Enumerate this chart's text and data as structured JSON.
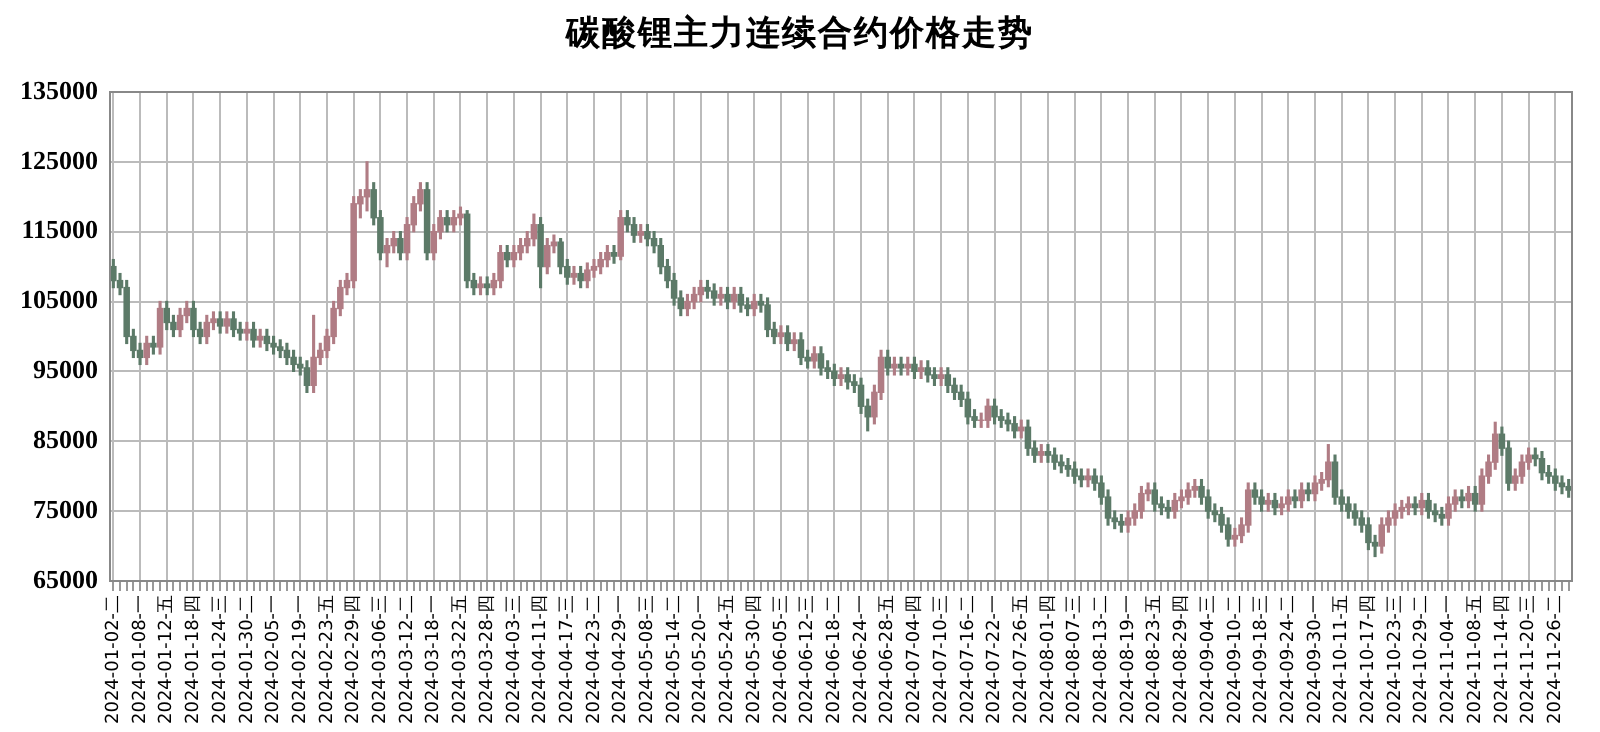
{
  "chart_data": {
    "type": "candlestick",
    "title": "碳酸锂主力连续合约价格走势",
    "categories": [
      "2024-01-02-二",
      null,
      null,
      null,
      "2024-01-08-一",
      null,
      null,
      null,
      "2024-01-12-五",
      null,
      null,
      null,
      "2024-01-18-四",
      null,
      null,
      null,
      "2024-01-24-三",
      null,
      null,
      null,
      "2024-01-30-二",
      null,
      null,
      null,
      "2024-02-05-一",
      null,
      null,
      null,
      "2024-02-19-一",
      null,
      null,
      null,
      "2024-02-23-五",
      null,
      null,
      null,
      "2024-02-29-四",
      null,
      null,
      null,
      "2024-03-06-三",
      null,
      null,
      null,
      "2024-03-12-二",
      null,
      null,
      null,
      "2024-03-18-一",
      null,
      null,
      null,
      "2024-03-22-五",
      null,
      null,
      null,
      "2024-03-28-四",
      null,
      null,
      null,
      "2024-04-03-三",
      null,
      null,
      null,
      "2024-04-11-四",
      null,
      null,
      null,
      "2024-04-17-三",
      null,
      null,
      null,
      "2024-04-23-二",
      null,
      null,
      null,
      "2024-04-29-一",
      null,
      null,
      null,
      "2024-05-08-三",
      null,
      null,
      null,
      "2024-05-14-二",
      null,
      null,
      null,
      "2024-05-20-一",
      null,
      null,
      null,
      "2024-05-24-五",
      null,
      null,
      null,
      "2024-05-30-四",
      null,
      null,
      null,
      "2024-06-05-三",
      null,
      null,
      null,
      "2024-06-12-三",
      null,
      null,
      null,
      "2024-06-18-二",
      null,
      null,
      null,
      "2024-06-24-一",
      null,
      null,
      null,
      "2024-06-28-五",
      null,
      null,
      null,
      "2024-07-04-四",
      null,
      null,
      null,
      "2024-07-10-三",
      null,
      null,
      null,
      "2024-07-16-二",
      null,
      null,
      null,
      "2024-07-22-一",
      null,
      null,
      null,
      "2024-07-26-五",
      null,
      null,
      null,
      "2024-08-01-四",
      null,
      null,
      null,
      "2024-08-07-三",
      null,
      null,
      null,
      "2024-08-13-二",
      null,
      null,
      null,
      "2024-08-19-一",
      null,
      null,
      null,
      "2024-08-23-五",
      null,
      null,
      null,
      "2024-08-29-四",
      null,
      null,
      null,
      "2024-09-04-三",
      null,
      null,
      null,
      "2024-09-10-二",
      null,
      null,
      null,
      "2024-09-18-三",
      null,
      null,
      null,
      "2024-09-24-二",
      null,
      null,
      null,
      "2024-09-30-一",
      null,
      null,
      null,
      "2024-10-11-五",
      null,
      null,
      null,
      "2024-10-17-四",
      null,
      null,
      null,
      "2024-10-23-三",
      null,
      null,
      null,
      "2024-10-29-二",
      null,
      null,
      null,
      "2024-11-04-一",
      null,
      null,
      null,
      "2024-11-08-五",
      null,
      null,
      null,
      "2024-11-14-四",
      null,
      null,
      null,
      "2024-11-20-三",
      null,
      null,
      null,
      "2024-11-26-二",
      null,
      null
    ],
    "ohlc": [
      [
        110000,
        111000,
        107000,
        108000
      ],
      [
        108000,
        109000,
        106000,
        107000
      ],
      [
        107000,
        108000,
        99000,
        100000
      ],
      [
        100000,
        101000,
        97000,
        98000
      ],
      [
        98000,
        99000,
        96000,
        97000
      ],
      [
        97000,
        100000,
        96000,
        99000
      ],
      [
        99000,
        100000,
        97500,
        98500
      ],
      [
        98500,
        105000,
        97500,
        104000
      ],
      [
        104000,
        105000,
        101000,
        102000
      ],
      [
        102000,
        103000,
        100000,
        101000
      ],
      [
        101000,
        104000,
        100000,
        103000
      ],
      [
        103000,
        105000,
        102000,
        104000
      ],
      [
        104000,
        105000,
        100000,
        101000
      ],
      [
        101000,
        102000,
        99000,
        100000
      ],
      [
        100000,
        103000,
        99000,
        102000
      ],
      [
        102000,
        103500,
        101000,
        102500
      ],
      [
        102500,
        103500,
        100500,
        101500
      ],
      [
        101500,
        103500,
        100500,
        102500
      ],
      [
        102500,
        103500,
        100000,
        101000
      ],
      [
        101000,
        102000,
        99500,
        100500
      ],
      [
        100500,
        102000,
        99500,
        101000
      ],
      [
        101000,
        102000,
        98500,
        99500
      ],
      [
        99500,
        101000,
        98500,
        100000
      ],
      [
        100000,
        101000,
        98000,
        99000
      ],
      [
        99000,
        100000,
        97500,
        98500
      ],
      [
        98500,
        99500,
        97000,
        98000
      ],
      [
        98000,
        99000,
        96000,
        97000
      ],
      [
        97000,
        98000,
        95000,
        96000
      ],
      [
        96000,
        97000,
        94500,
        95500
      ],
      [
        95500,
        96500,
        92000,
        93000
      ],
      [
        93000,
        103000,
        92000,
        97000
      ],
      [
        97000,
        99000,
        96000,
        98000
      ],
      [
        98000,
        101000,
        97000,
        100000
      ],
      [
        100000,
        105000,
        99000,
        104000
      ],
      [
        104000,
        108000,
        103000,
        107000
      ],
      [
        107000,
        109000,
        106000,
        108000
      ],
      [
        108000,
        120000,
        107000,
        119000
      ],
      [
        119000,
        121000,
        117000,
        120000
      ],
      [
        120000,
        125000,
        118000,
        121000
      ],
      [
        121000,
        122000,
        116000,
        117000
      ],
      [
        117000,
        118000,
        111000,
        112000
      ],
      [
        112000,
        114000,
        110000,
        113000
      ],
      [
        113000,
        115000,
        112000,
        114000
      ],
      [
        114000,
        115000,
        111000,
        112000
      ],
      [
        112000,
        117000,
        111000,
        116000
      ],
      [
        116000,
        120000,
        115000,
        119000
      ],
      [
        119000,
        122000,
        118000,
        121000
      ],
      [
        121000,
        122000,
        111000,
        112000
      ],
      [
        112000,
        116000,
        111000,
        115000
      ],
      [
        115000,
        118000,
        114000,
        117000
      ],
      [
        117000,
        118000,
        115000,
        116000
      ],
      [
        116000,
        118000,
        115000,
        117000
      ],
      [
        117000,
        118500,
        116000,
        117500
      ],
      [
        117500,
        118000,
        107000,
        108000
      ],
      [
        108000,
        109000,
        106000,
        107000
      ],
      [
        107000,
        108500,
        106000,
        107500
      ],
      [
        107500,
        108500,
        106000,
        107000
      ],
      [
        107000,
        109000,
        106000,
        108000
      ],
      [
        108000,
        113000,
        107000,
        112000
      ],
      [
        112000,
        113000,
        110000,
        111000
      ],
      [
        111000,
        113000,
        110000,
        112000
      ],
      [
        112000,
        114000,
        111000,
        113000
      ],
      [
        113000,
        115000,
        112000,
        114000
      ],
      [
        114000,
        117500,
        113000,
        116000
      ],
      [
        116000,
        117000,
        107000,
        110000
      ],
      [
        110000,
        114000,
        109000,
        113000
      ],
      [
        113000,
        114500,
        112000,
        113500
      ],
      [
        113500,
        114000,
        109000,
        110000
      ],
      [
        110000,
        111000,
        107500,
        108500
      ],
      [
        108500,
        110000,
        107500,
        109000
      ],
      [
        109000,
        110000,
        107000,
        108000
      ],
      [
        108000,
        110500,
        107000,
        109500
      ],
      [
        109500,
        111000,
        108500,
        110000
      ],
      [
        110000,
        112000,
        109000,
        111000
      ],
      [
        111000,
        113000,
        110000,
        112000
      ],
      [
        112000,
        113000,
        110500,
        111500
      ],
      [
        111500,
        118000,
        111000,
        117000
      ],
      [
        117000,
        118000,
        115000,
        116000
      ],
      [
        116000,
        117000,
        113500,
        114500
      ],
      [
        114500,
        116000,
        113500,
        115000
      ],
      [
        115000,
        116000,
        113000,
        114000
      ],
      [
        114000,
        115000,
        112000,
        113000
      ],
      [
        113000,
        114000,
        109000,
        110000
      ],
      [
        110000,
        111000,
        107000,
        108000
      ],
      [
        108000,
        109000,
        104500,
        105500
      ],
      [
        105500,
        106500,
        103000,
        104000
      ],
      [
        104000,
        106000,
        103000,
        105000
      ],
      [
        105000,
        107000,
        104000,
        106000
      ],
      [
        106000,
        108000,
        105000,
        107000
      ],
      [
        107000,
        108000,
        105500,
        106500
      ],
      [
        106500,
        107500,
        104500,
        105500
      ],
      [
        105500,
        107000,
        104500,
        106000
      ],
      [
        106000,
        107000,
        104000,
        105000
      ],
      [
        105000,
        107000,
        104000,
        106000
      ],
      [
        106000,
        107000,
        103500,
        104500
      ],
      [
        104500,
        105500,
        103000,
        104000
      ],
      [
        104000,
        106000,
        103000,
        105000
      ],
      [
        105000,
        106000,
        103500,
        104500
      ],
      [
        104500,
        105500,
        100000,
        101000
      ],
      [
        101000,
        102000,
        99000,
        100000
      ],
      [
        100000,
        101500,
        99000,
        100500
      ],
      [
        100500,
        101500,
        98000,
        99000
      ],
      [
        99000,
        100500,
        98000,
        99500
      ],
      [
        99500,
        100500,
        96000,
        97000
      ],
      [
        97000,
        98000,
        95500,
        96500
      ],
      [
        96500,
        98500,
        95500,
        97500
      ],
      [
        97500,
        98500,
        94500,
        95500
      ],
      [
        95500,
        96500,
        94000,
        95000
      ],
      [
        95000,
        96000,
        93000,
        94000
      ],
      [
        94000,
        95500,
        93000,
        94500
      ],
      [
        94500,
        95500,
        92500,
        93500
      ],
      [
        93500,
        94500,
        92000,
        93000
      ],
      [
        93000,
        94000,
        89000,
        90000
      ],
      [
        90000,
        91000,
        86500,
        88500
      ],
      [
        88500,
        93000,
        87500,
        92000
      ],
      [
        92000,
        98000,
        91000,
        97000
      ],
      [
        97000,
        98000,
        94500,
        95500
      ],
      [
        95500,
        97000,
        94500,
        96000
      ],
      [
        96000,
        97000,
        94500,
        95500
      ],
      [
        95500,
        97000,
        94500,
        96000
      ],
      [
        96000,
        97000,
        94000,
        95000
      ],
      [
        95000,
        96500,
        94000,
        95500
      ],
      [
        95500,
        96500,
        93500,
        94500
      ],
      [
        94500,
        95500,
        93000,
        94000
      ],
      [
        94000,
        95500,
        93000,
        94500
      ],
      [
        94500,
        95500,
        92000,
        93000
      ],
      [
        93000,
        94000,
        91000,
        92000
      ],
      [
        92000,
        93000,
        90000,
        91000
      ],
      [
        91000,
        92000,
        87500,
        88500
      ],
      [
        88500,
        89500,
        87000,
        88000
      ],
      [
        88000,
        89000,
        87000,
        88000
      ],
      [
        88000,
        91000,
        87000,
        90000
      ],
      [
        90000,
        91000,
        87500,
        88500
      ],
      [
        88500,
        89500,
        87000,
        88000
      ],
      [
        88000,
        89000,
        86500,
        87500
      ],
      [
        87500,
        88500,
        85500,
        86500
      ],
      [
        86500,
        88000,
        85500,
        87000
      ],
      [
        87000,
        88000,
        83000,
        84000
      ],
      [
        84000,
        85000,
        82000,
        83000
      ],
      [
        83000,
        84500,
        82000,
        83500
      ],
      [
        83500,
        84500,
        82000,
        83000
      ],
      [
        83000,
        84000,
        81000,
        82000
      ],
      [
        82000,
        83000,
        80500,
        81500
      ],
      [
        81500,
        82500,
        80000,
        81000
      ],
      [
        81000,
        82000,
        79000,
        80000
      ],
      [
        80000,
        81000,
        78500,
        79500
      ],
      [
        79500,
        81000,
        78500,
        80000
      ],
      [
        80000,
        81000,
        78000,
        79000
      ],
      [
        79000,
        80000,
        76000,
        77000
      ],
      [
        77000,
        78000,
        73000,
        74000
      ],
      [
        74000,
        75000,
        72500,
        73500
      ],
      [
        73500,
        74500,
        72000,
        73000
      ],
      [
        73000,
        75000,
        72000,
        74000
      ],
      [
        74000,
        76000,
        73000,
        75000
      ],
      [
        75000,
        78500,
        74000,
        77500
      ],
      [
        77500,
        79000,
        76500,
        78000
      ],
      [
        78000,
        79000,
        75000,
        76000
      ],
      [
        76000,
        77000,
        74500,
        75500
      ],
      [
        75500,
        76500,
        74000,
        75000
      ],
      [
        75000,
        77500,
        74000,
        76500
      ],
      [
        76500,
        78000,
        75500,
        77000
      ],
      [
        77000,
        79000,
        76000,
        78000
      ],
      [
        78000,
        79500,
        77000,
        78500
      ],
      [
        78500,
        79500,
        76000,
        77000
      ],
      [
        77000,
        78000,
        74000,
        75000
      ],
      [
        75000,
        76000,
        73500,
        74500
      ],
      [
        74500,
        75500,
        72000,
        73000
      ],
      [
        73000,
        74000,
        70000,
        71000
      ],
      [
        71000,
        72500,
        70000,
        71500
      ],
      [
        71500,
        74000,
        70500,
        73000
      ],
      [
        73000,
        79000,
        72000,
        78000
      ],
      [
        78000,
        79000,
        76000,
        77000
      ],
      [
        77000,
        78000,
        75000,
        76000
      ],
      [
        76000,
        77500,
        75000,
        76500
      ],
      [
        76500,
        77500,
        74500,
        75500
      ],
      [
        75500,
        77000,
        74500,
        76000
      ],
      [
        76000,
        78000,
        75000,
        77000
      ],
      [
        77000,
        78000,
        75500,
        76500
      ],
      [
        76500,
        79000,
        75500,
        78000
      ],
      [
        78000,
        79000,
        76500,
        77500
      ],
      [
        77500,
        80000,
        76500,
        79000
      ],
      [
        79000,
        80500,
        78000,
        79500
      ],
      [
        79500,
        84500,
        78500,
        82000
      ],
      [
        82000,
        83000,
        76000,
        77000
      ],
      [
        77000,
        78000,
        75000,
        76000
      ],
      [
        76000,
        77000,
        74000,
        75000
      ],
      [
        75000,
        76000,
        73000,
        74000
      ],
      [
        74000,
        75000,
        72000,
        73000
      ],
      [
        73000,
        74000,
        69500,
        70500
      ],
      [
        70500,
        71500,
        68500,
        70000
      ],
      [
        70000,
        74000,
        69000,
        73000
      ],
      [
        73000,
        75000,
        72000,
        74000
      ],
      [
        74000,
        76000,
        73000,
        75000
      ],
      [
        75000,
        76500,
        74000,
        75500
      ],
      [
        75500,
        77000,
        74500,
        76000
      ],
      [
        76000,
        77000,
        74500,
        75500
      ],
      [
        75500,
        77500,
        74500,
        76500
      ],
      [
        76500,
        77500,
        74000,
        75000
      ],
      [
        75000,
        76000,
        73500,
        74500
      ],
      [
        74500,
        75500,
        73000,
        74000
      ],
      [
        74000,
        77000,
        73000,
        76000
      ],
      [
        76000,
        78000,
        75000,
        77000
      ],
      [
        77000,
        78000,
        75500,
        76500
      ],
      [
        76500,
        78500,
        75500,
        77500
      ],
      [
        77500,
        78500,
        75000,
        76000
      ],
      [
        76000,
        81000,
        75000,
        80000
      ],
      [
        80000,
        83000,
        79000,
        82000
      ],
      [
        82000,
        87700,
        81000,
        86000
      ],
      [
        86000,
        87000,
        83000,
        84000
      ],
      [
        84000,
        85000,
        78000,
        79000
      ],
      [
        79000,
        81000,
        78000,
        80000
      ],
      [
        80000,
        83000,
        79000,
        82000
      ],
      [
        82000,
        84000,
        81000,
        83000
      ],
      [
        83000,
        84000,
        81500,
        82500
      ],
      [
        82500,
        83500,
        79500,
        80500
      ],
      [
        80500,
        81500,
        79000,
        80000
      ],
      [
        80000,
        81000,
        78000,
        79000
      ],
      [
        79000,
        80000,
        77500,
        78500
      ],
      [
        78500,
        79500,
        77000,
        78000
      ]
    ],
    "colors": [
      "#5c7a68",
      "#5c7a68",
      "#5c7a68",
      "#5c7a68",
      "#5c7a68",
      "#b07c84",
      "#5c7a68",
      "#b07c84",
      "#5c7a68",
      "#5c7a68",
      "#b07c84",
      "#b07c84",
      "#5c7a68",
      "#5c7a68",
      "#b07c84",
      "#b07c84",
      "#5c7a68",
      "#b07c84",
      "#5c7a68",
      "#5c7a68",
      "#b07c84",
      "#5c7a68",
      "#b07c84",
      "#5c7a68",
      "#5c7a68",
      "#5c7a68",
      "#5c7a68",
      "#5c7a68",
      "#5c7a68",
      "#5c7a68",
      "#b07c84",
      "#b07c84",
      "#b07c84",
      "#b07c84",
      "#b07c84",
      "#b07c84",
      "#b07c84",
      "#b07c84",
      "#b07c84",
      "#5c7a68",
      "#5c7a68",
      "#b07c84",
      "#b07c84",
      "#5c7a68",
      "#b07c84",
      "#b07c84",
      "#b07c84",
      "#5c7a68",
      "#b07c84",
      "#b07c84",
      "#5c7a68",
      "#b07c84",
      "#b07c84",
      "#5c7a68",
      "#5c7a68",
      "#b07c84",
      "#5c7a68",
      "#b07c84",
      "#b07c84",
      "#5c7a68",
      "#b07c84",
      "#b07c84",
      "#b07c84",
      "#b07c84",
      "#5c7a68",
      "#b07c84",
      "#b07c84",
      "#5c7a68",
      "#5c7a68",
      "#b07c84",
      "#5c7a68",
      "#b07c84",
      "#b07c84",
      "#b07c84",
      "#b07c84",
      "#5c7a68",
      "#b07c84",
      "#5c7a68",
      "#5c7a68",
      "#b07c84",
      "#5c7a68",
      "#5c7a68",
      "#5c7a68",
      "#5c7a68",
      "#5c7a68",
      "#5c7a68",
      "#b07c84",
      "#b07c84",
      "#b07c84",
      "#5c7a68",
      "#5c7a68",
      "#b07c84",
      "#5c7a68",
      "#b07c84",
      "#5c7a68",
      "#5c7a68",
      "#b07c84",
      "#5c7a68",
      "#5c7a68",
      "#5c7a68",
      "#b07c84",
      "#5c7a68",
      "#b07c84",
      "#5c7a68",
      "#5c7a68",
      "#b07c84",
      "#5c7a68",
      "#5c7a68",
      "#5c7a68",
      "#b07c84",
      "#5c7a68",
      "#5c7a68",
      "#5c7a68",
      "#5c7a68",
      "#b07c84",
      "#b07c84",
      "#5c7a68",
      "#b07c84",
      "#5c7a68",
      "#b07c84",
      "#5c7a68",
      "#b07c84",
      "#5c7a68",
      "#5c7a68",
      "#b07c84",
      "#5c7a68",
      "#5c7a68",
      "#5c7a68",
      "#5c7a68",
      "#5c7a68",
      "#b07c84",
      "#b07c84",
      "#5c7a68",
      "#5c7a68",
      "#5c7a68",
      "#5c7a68",
      "#b07c84",
      "#5c7a68",
      "#5c7a68",
      "#b07c84",
      "#5c7a68",
      "#5c7a68",
      "#5c7a68",
      "#5c7a68",
      "#5c7a68",
      "#5c7a68",
      "#b07c84",
      "#5c7a68",
      "#5c7a68",
      "#5c7a68",
      "#5c7a68",
      "#5c7a68",
      "#b07c84",
      "#b07c84",
      "#b07c84",
      "#b07c84",
      "#5c7a68",
      "#5c7a68",
      "#5c7a68",
      "#b07c84",
      "#b07c84",
      "#b07c84",
      "#b07c84",
      "#5c7a68",
      "#5c7a68",
      "#5c7a68",
      "#5c7a68",
      "#5c7a68",
      "#b07c84",
      "#b07c84",
      "#b07c84",
      "#5c7a68",
      "#5c7a68",
      "#b07c84",
      "#5c7a68",
      "#b07c84",
      "#b07c84",
      "#5c7a68",
      "#b07c84",
      "#5c7a68",
      "#b07c84",
      "#b07c84",
      "#b07c84",
      "#5c7a68",
      "#5c7a68",
      "#5c7a68",
      "#5c7a68",
      "#5c7a68",
      "#5c7a68",
      "#5c7a68",
      "#b07c84",
      "#b07c84",
      "#b07c84",
      "#b07c84",
      "#b07c84",
      "#5c7a68",
      "#b07c84",
      "#5c7a68",
      "#5c7a68",
      "#5c7a68",
      "#b07c84",
      "#b07c84",
      "#5c7a68",
      "#b07c84",
      "#5c7a68",
      "#b07c84",
      "#b07c84",
      "#b07c84",
      "#5c7a68",
      "#5c7a68",
      "#b07c84",
      "#b07c84",
      "#b07c84",
      "#5c7a68",
      "#5c7a68",
      "#5c7a68",
      "#5c7a68",
      "#5c7a68",
      "#5c7a68"
    ],
    "ylim": [
      65000,
      135000
    ],
    "yticks": [
      65000,
      75000,
      85000,
      95000,
      105000,
      115000,
      125000,
      135000
    ],
    "grid": true
  }
}
